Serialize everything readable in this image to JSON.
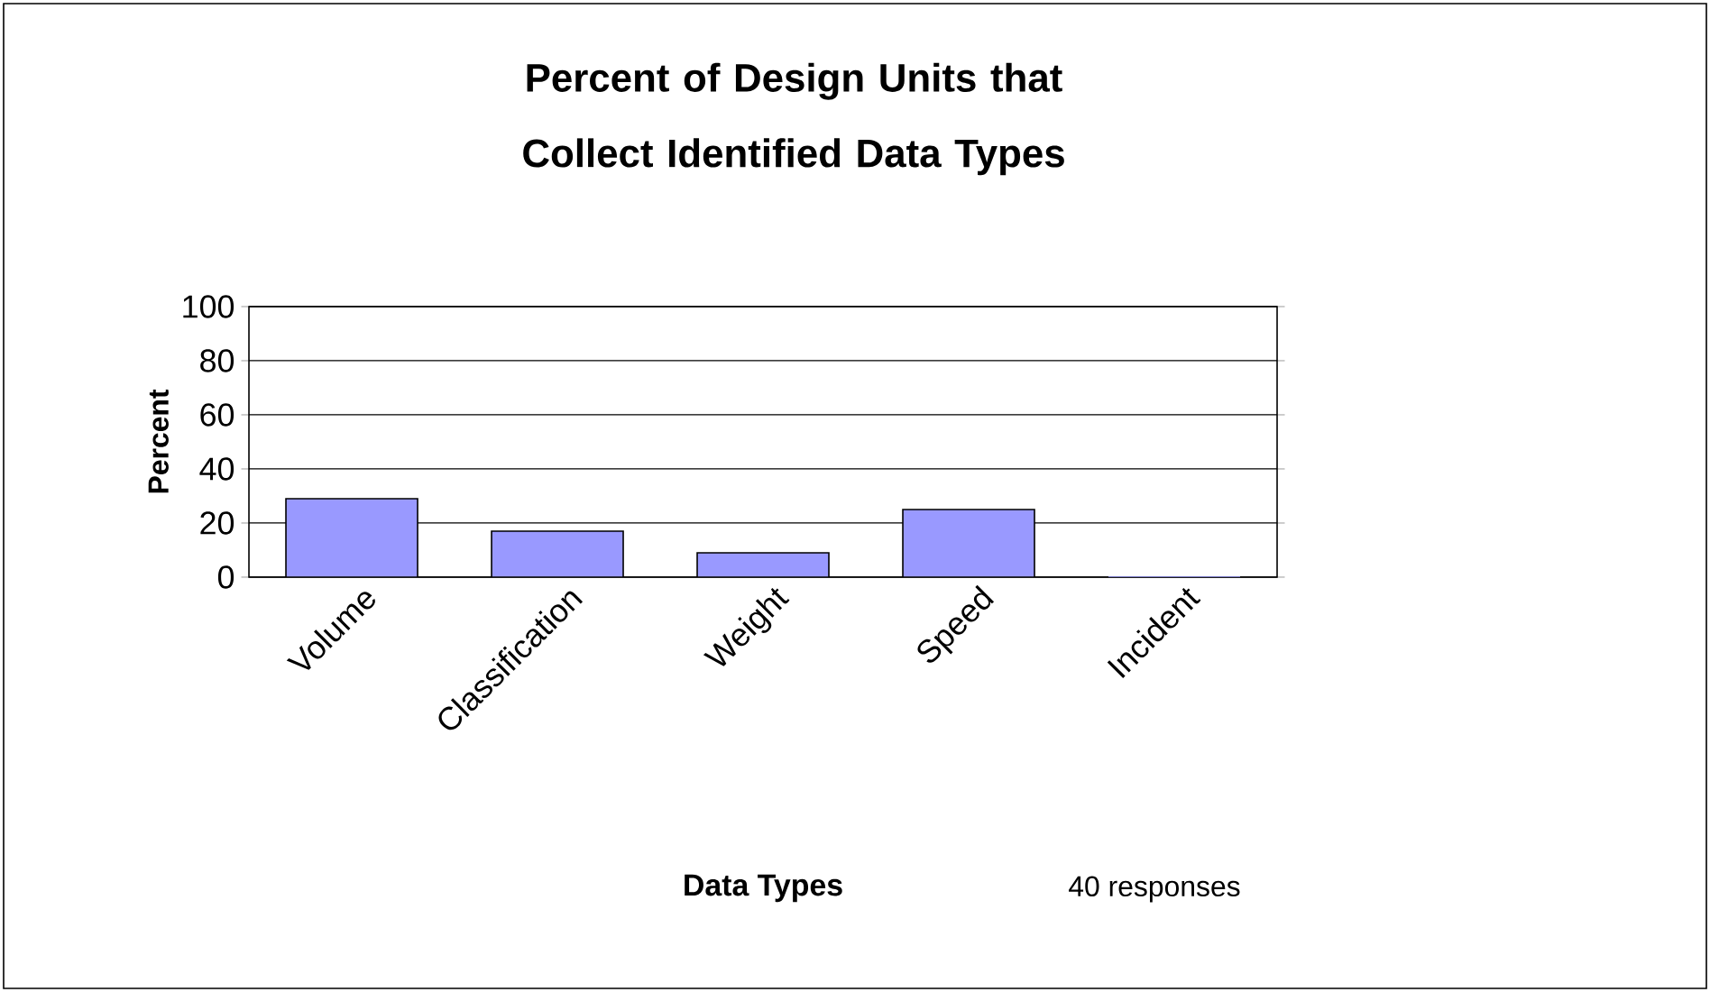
{
  "chart_data": {
    "type": "bar",
    "title": "Percent of  Design Units that Collect Identified Data Types",
    "xlabel": "Data Types",
    "ylabel": "Percent",
    "categories": [
      "Volume",
      "Classification",
      "Weight",
      "Speed",
      "Incident"
    ],
    "values": [
      29,
      17,
      9,
      25,
      0
    ],
    "color": "#9999ff",
    "ylim": [
      0,
      100
    ],
    "yticks": [
      0,
      20,
      40,
      60,
      80,
      100
    ],
    "grid": "y",
    "annotations": [
      "40 responses"
    ]
  }
}
